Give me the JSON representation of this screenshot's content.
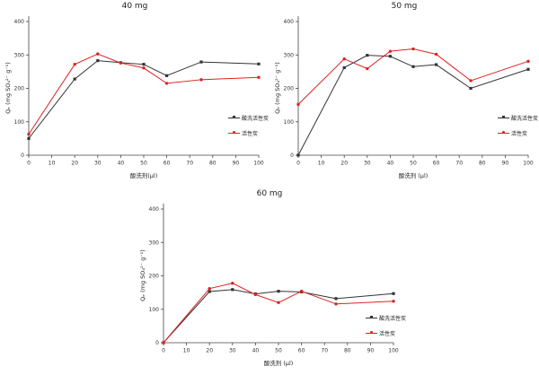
{
  "figure": {
    "background_color": "#ffffff",
    "series_colors": {
      "acid_washed": "#333333",
      "plain": "#de2222"
    }
  },
  "chart_data": [
    {
      "type": "line",
      "title": "40 mg",
      "xlabel": "酸洗剂(μl)",
      "ylabel": "Qₑ (mg SO₄²⁻ g⁻¹)",
      "xlim": [
        0,
        100
      ],
      "ylim": [
        0,
        400
      ],
      "xticks": [
        0,
        10,
        20,
        30,
        40,
        50,
        60,
        70,
        80,
        90,
        100
      ],
      "yticks": [
        0,
        100,
        200,
        300,
        400
      ],
      "x": [
        0,
        20,
        30,
        40,
        50,
        60,
        75,
        100
      ],
      "series": [
        {
          "name": "酸洗活性炭",
          "color": "#333333",
          "marker": "square",
          "values": [
            50,
            228,
            283,
            277,
            272,
            238,
            279,
            273
          ]
        },
        {
          "name": "活性炭",
          "color": "#de2222",
          "marker": "circle",
          "values": [
            63,
            272,
            303,
            276,
            261,
            215,
            226,
            233
          ]
        }
      ],
      "legend_position": "right-middle",
      "grid": false
    },
    {
      "type": "line",
      "title": "50 mg",
      "xlabel": "酸洗剂 (μl)",
      "ylabel": "Qₑ (mg SO₄²⁻ g⁻¹)",
      "xlim": [
        0,
        100
      ],
      "ylim": [
        0,
        400
      ],
      "xticks": [
        0,
        10,
        20,
        30,
        40,
        50,
        60,
        70,
        80,
        90,
        100
      ],
      "yticks": [
        0,
        100,
        200,
        300,
        400
      ],
      "x": [
        0,
        20,
        30,
        40,
        50,
        60,
        75,
        100
      ],
      "series": [
        {
          "name": "酸洗活性炭",
          "color": "#333333",
          "marker": "square",
          "values": [
            0,
            262,
            299,
            296,
            265,
            271,
            200,
            257
          ]
        },
        {
          "name": "活性炭",
          "color": "#de2222",
          "marker": "circle",
          "values": [
            152,
            288,
            259,
            311,
            318,
            302,
            223,
            281
          ]
        }
      ],
      "legend_position": "right-middle",
      "grid": false
    },
    {
      "type": "line",
      "title": "60 mg",
      "xlabel": "酸洗剂 (μl)",
      "ylabel": "Qₑ (mg SO₄²⁻ g⁻¹)",
      "xlim": [
        0,
        100
      ],
      "ylim": [
        0,
        400
      ],
      "xticks": [
        0,
        10,
        20,
        30,
        40,
        50,
        60,
        70,
        80,
        90,
        100
      ],
      "yticks": [
        0,
        100,
        200,
        300,
        400
      ],
      "x": [
        0,
        20,
        30,
        40,
        50,
        60,
        75,
        100
      ],
      "series": [
        {
          "name": "酸洗活性炭",
          "color": "#333333",
          "marker": "square",
          "values": [
            0,
            153,
            159,
            146,
            154,
            152,
            132,
            147
          ]
        },
        {
          "name": "活性炭",
          "color": "#de2222",
          "marker": "circle",
          "values": [
            0,
            162,
            178,
            144,
            120,
            154,
            116,
            124
          ]
        }
      ],
      "legend_position": "right-middle",
      "grid": false
    }
  ]
}
